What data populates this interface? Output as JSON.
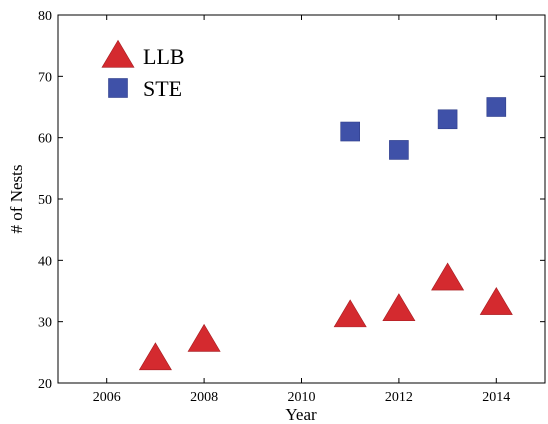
{
  "chart_data": {
    "type": "scatter",
    "title": "",
    "xlabel": "Year",
    "ylabel": "# of Nests",
    "xlim": [
      2005,
      2015
    ],
    "ylim": [
      20,
      80
    ],
    "xticks": [
      2006,
      2008,
      2010,
      2012,
      2014
    ],
    "yticks": [
      20,
      30,
      40,
      50,
      60,
      70,
      80
    ],
    "grid": false,
    "legend_position": "top-left",
    "series": [
      {
        "name": "LLB",
        "marker": "triangle",
        "color": "#d42a2f",
        "points": [
          {
            "x": 2007,
            "y": 24
          },
          {
            "x": 2008,
            "y": 27
          },
          {
            "x": 2011,
            "y": 31
          },
          {
            "x": 2012,
            "y": 32
          },
          {
            "x": 2013,
            "y": 37
          },
          {
            "x": 2014,
            "y": 33
          }
        ]
      },
      {
        "name": "STE",
        "marker": "square",
        "color": "#3f51a8",
        "points": [
          {
            "x": 2011,
            "y": 61
          },
          {
            "x": 2012,
            "y": 58
          },
          {
            "x": 2013,
            "y": 63
          },
          {
            "x": 2014,
            "y": 65
          }
        ]
      }
    ]
  }
}
